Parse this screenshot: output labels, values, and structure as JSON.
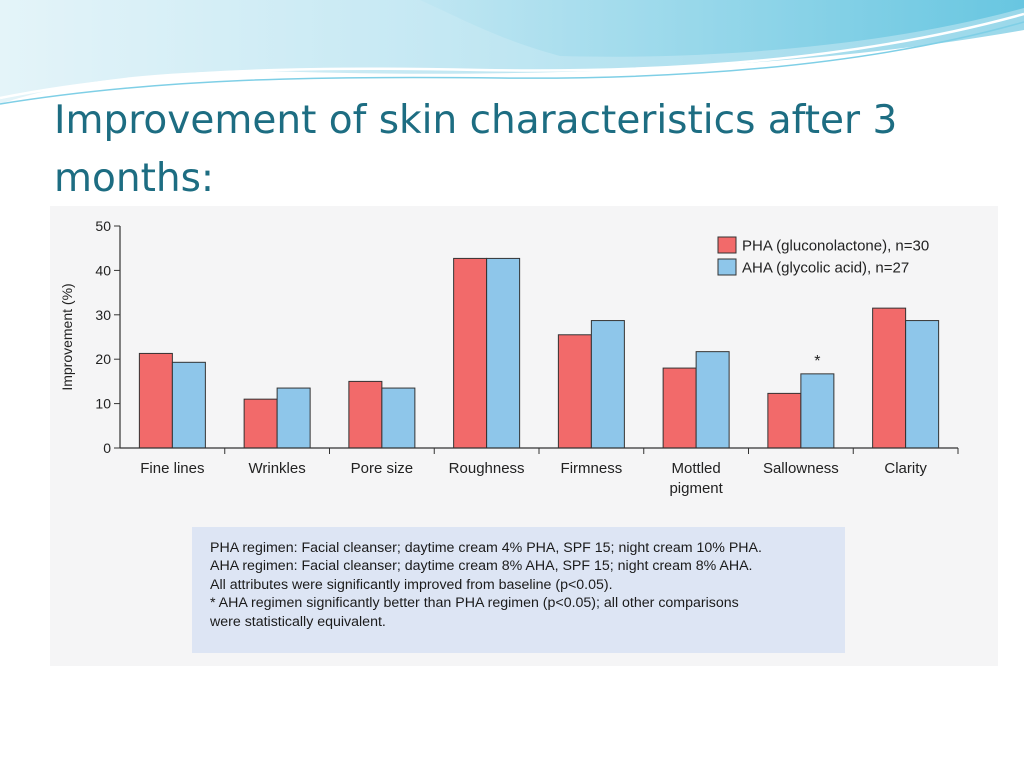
{
  "slide": {
    "title_line1": "Improvement of skin characteristics after 3",
    "title_line2": "months:"
  },
  "colors": {
    "title": "#1d6d82",
    "pha_bar": "#f26a6a",
    "aha_bar": "#8ec6ea",
    "caption_bg": "#dde5f4",
    "wave_light": "#bfe6f2",
    "wave_mid": "#7fcfe6"
  },
  "chart_data": {
    "type": "bar",
    "title": "",
    "xlabel": "",
    "ylabel": "Improvement (%)",
    "ylim": [
      0,
      50
    ],
    "yticks": [
      0,
      10,
      20,
      30,
      40,
      50
    ],
    "grid": false,
    "legend_position": "top-right",
    "categories": [
      [
        "Fine lines"
      ],
      [
        "Wrinkles"
      ],
      [
        "Pore size"
      ],
      [
        "Roughness"
      ],
      [
        "Firmness"
      ],
      [
        "Mottled",
        "pigment"
      ],
      [
        "Sallowness"
      ],
      [
        "Clarity"
      ]
    ],
    "series": [
      {
        "name": "PHA (gluconolactone), n=30",
        "color": "#f26a6a",
        "values": [
          21.3,
          11,
          15,
          42.7,
          25.5,
          18,
          12.3,
          31.5
        ]
      },
      {
        "name": "AHA (glycolic acid), n=27",
        "color": "#8ec6ea",
        "values": [
          19.3,
          13.5,
          13.5,
          42.7,
          28.7,
          21.7,
          16.7,
          28.7
        ]
      }
    ],
    "annotations": [
      {
        "category_index": 6,
        "series_index": 1,
        "text": "*"
      }
    ]
  },
  "caption": {
    "lines": [
      "PHA regimen: Facial cleanser; daytime cream 4% PHA, SPF 15; night cream 10% PHA.",
      "AHA regimen: Facial cleanser; daytime cream 8% AHA, SPF 15; night cream 8% AHA.",
      "All attributes were significantly improved from baseline (p<0.05).",
      "* AHA regimen significantly better than PHA regimen (p<0.05); all other comparisons",
      "were statistically equivalent."
    ]
  }
}
